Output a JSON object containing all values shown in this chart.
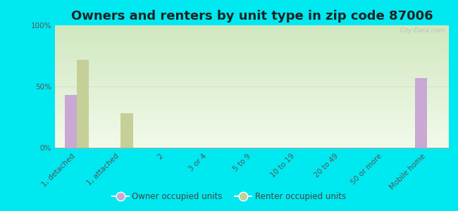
{
  "title": "Owners and renters by unit type in zip code 87006",
  "categories": [
    "1, detached",
    "1, attached",
    "2",
    "3 or 4",
    "5 to 9",
    "10 to 19",
    "20 to 49",
    "50 or more",
    "Mobile home"
  ],
  "owner_values": [
    43,
    0,
    0,
    0,
    0,
    0,
    0,
    0,
    57
  ],
  "renter_values": [
    72,
    28,
    0,
    0,
    0,
    0,
    0,
    0,
    0
  ],
  "owner_color": "#c9a8d4",
  "renter_color": "#c5cf98",
  "outer_background": "#00e8f0",
  "plot_bg_top": "#d0e8c0",
  "plot_bg_bottom": "#f2faea",
  "ylabel_ticks": [
    "0%",
    "50%",
    "100%"
  ],
  "ytick_vals": [
    0,
    50,
    100
  ],
  "ylim": [
    0,
    100
  ],
  "bar_width": 0.28,
  "watermark": "City-Data.com",
  "title_fontsize": 13,
  "tick_fontsize": 7.5,
  "legend_owner": "Owner occupied units",
  "legend_renter": "Renter occupied units"
}
